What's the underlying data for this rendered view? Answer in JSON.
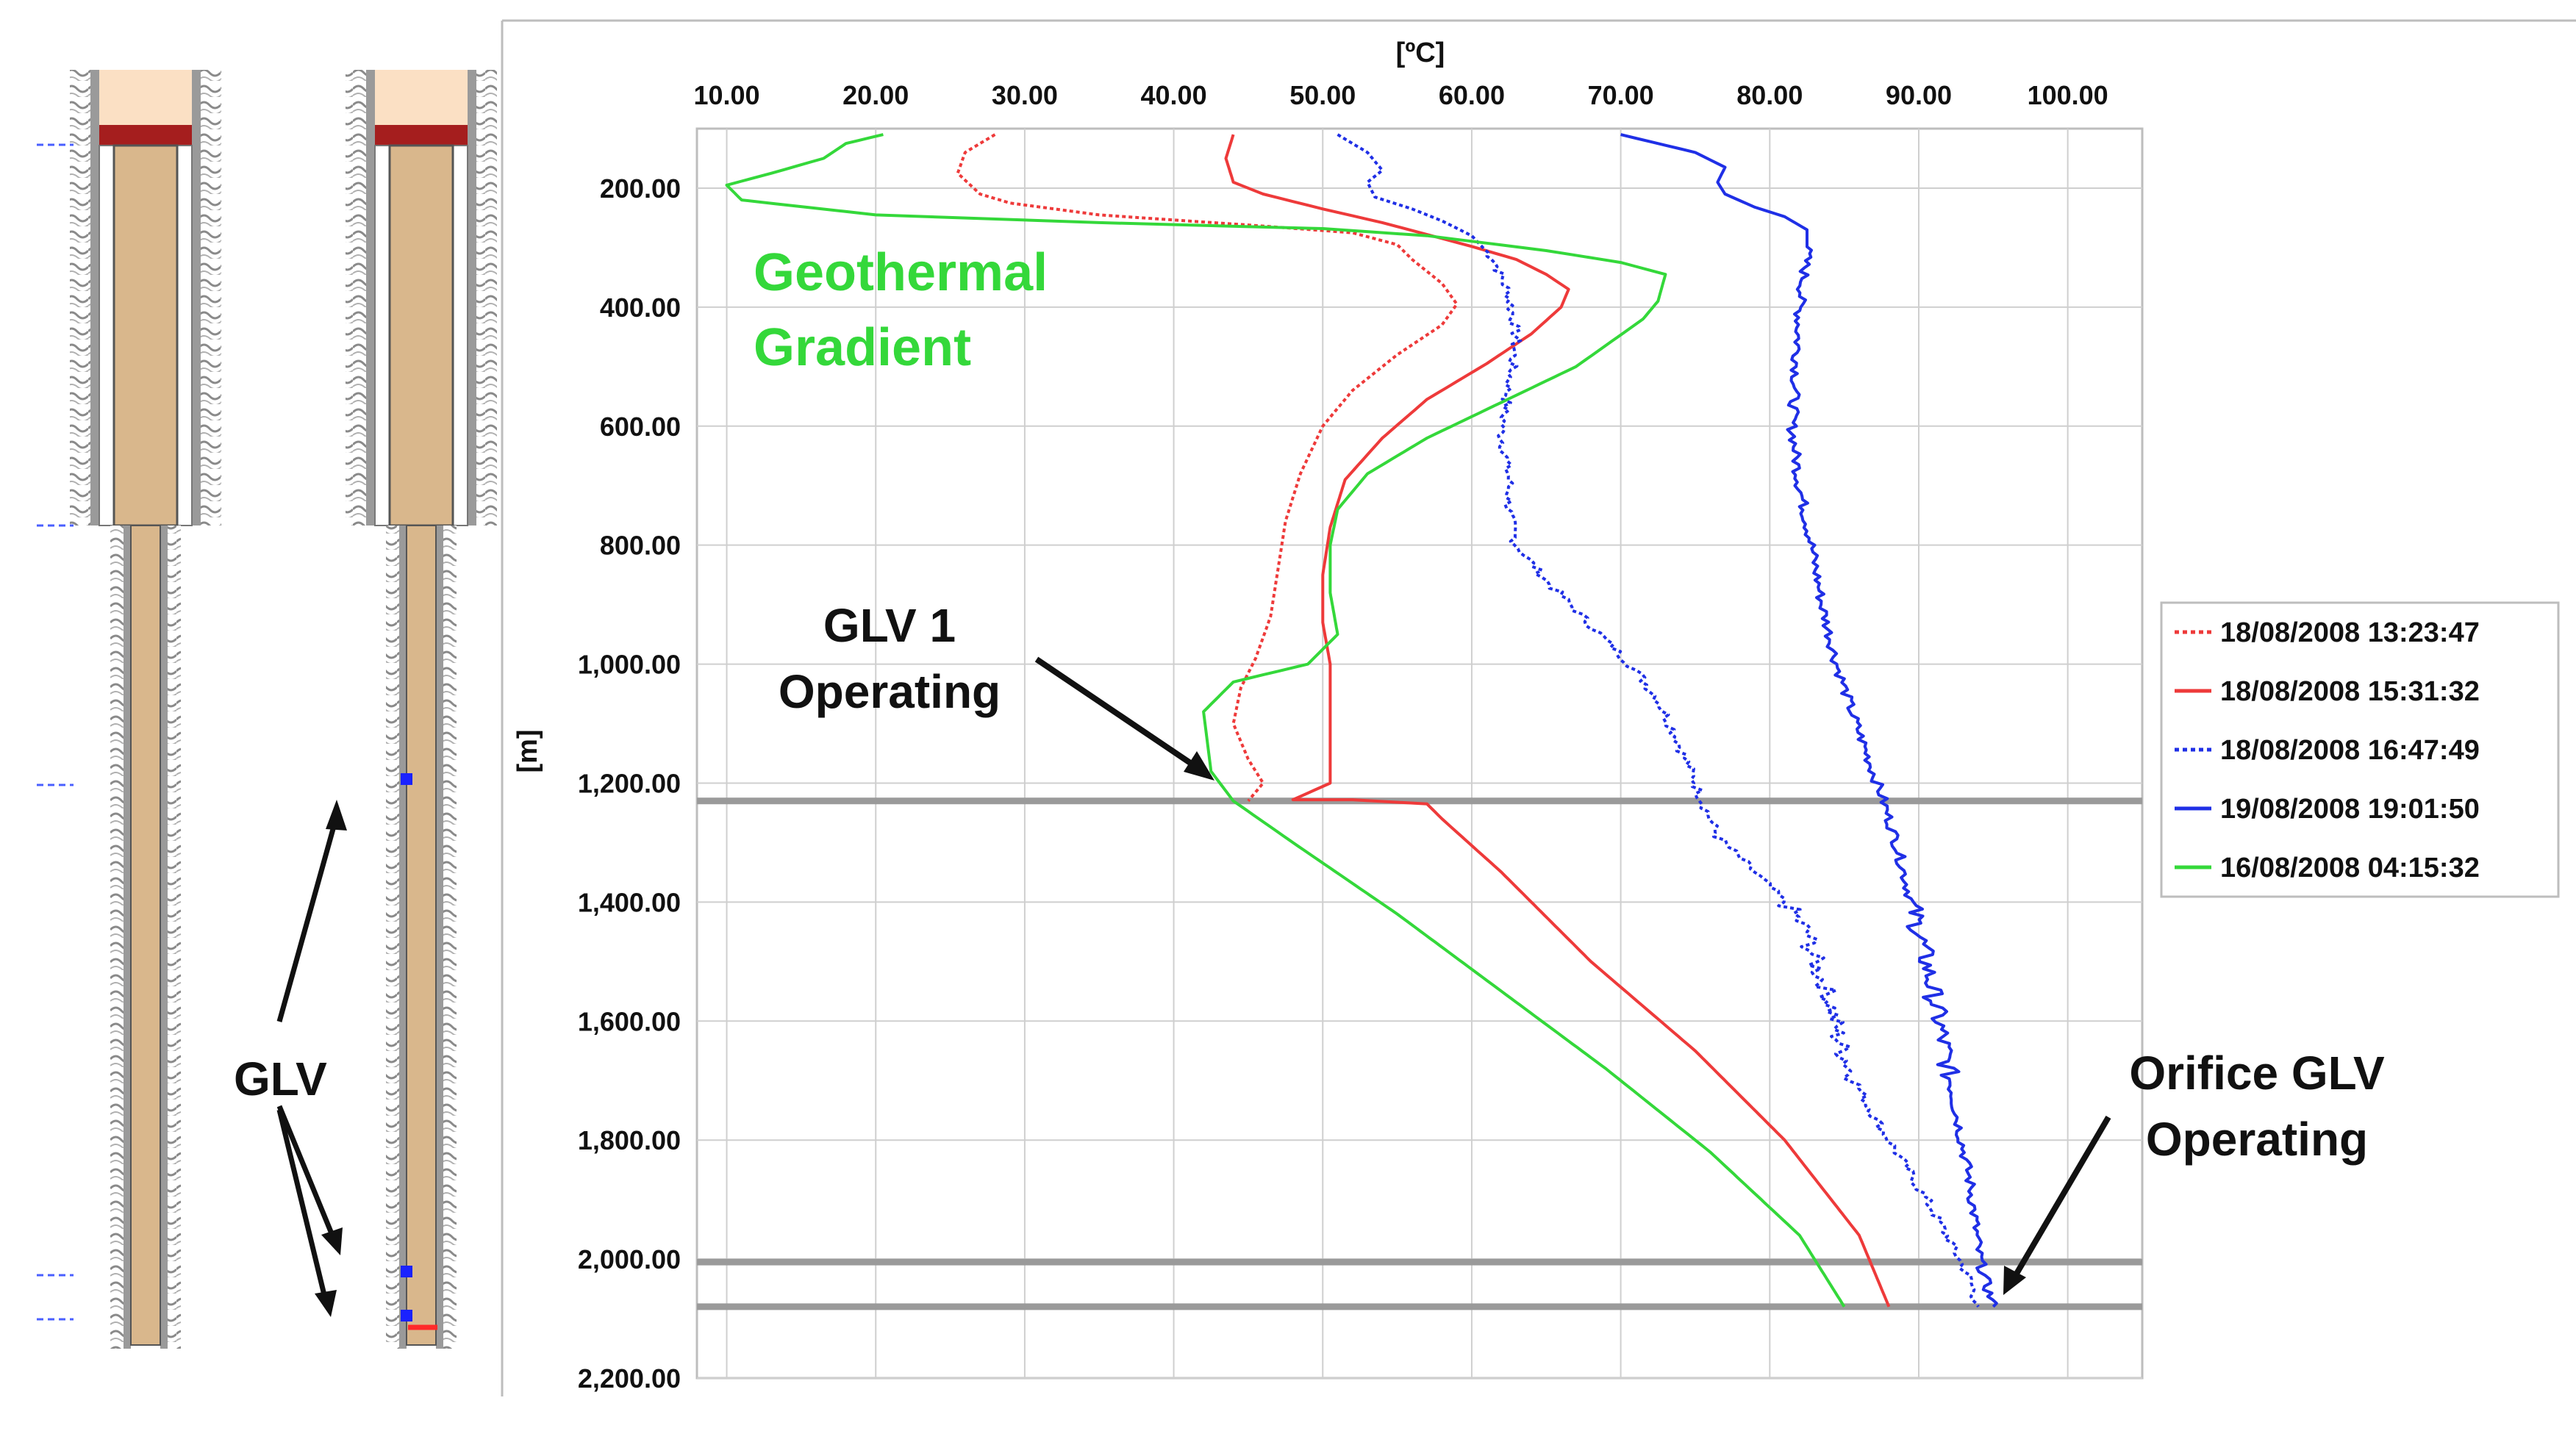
{
  "colors": {
    "red": "#ee3a3a",
    "blue": "#1f2fe6",
    "green": "#34d83a",
    "grid": "#cfcfcf",
    "marker_line": "#9a9a9a",
    "tubing": "#d9b78c",
    "casing_wall": "#9a9a9a",
    "packer": "#a51e1e",
    "top_fill": "#fbe0c4",
    "valve": "#1a22ff"
  },
  "annotations": {
    "geothermal_line1": "Geothermal",
    "geothermal_line2": "Gradient",
    "glv1_line1": "GLV 1",
    "glv1_line2": "Operating",
    "orifice_line1": "Orifice GLV",
    "orifice_line2": "Operating",
    "glv_label": "GLV"
  },
  "chart_data": {
    "type": "line",
    "xlabel": "[ºC]",
    "ylabel": "[m]",
    "xlim": [
      8,
      105
    ],
    "ylim": [
      2200,
      100
    ],
    "x_ticks": [
      "10.00",
      "20.00",
      "30.00",
      "40.00",
      "50.00",
      "60.00",
      "70.00",
      "80.00",
      "90.00",
      "100.00"
    ],
    "x_tick_values": [
      10,
      20,
      30,
      40,
      50,
      60,
      70,
      80,
      90,
      100
    ],
    "y_ticks": [
      "200.00",
      "400.00",
      "600.00",
      "800.00",
      "1,000.00",
      "1,200.00",
      "1,400.00",
      "1,600.00",
      "1,800.00",
      "2,000.00",
      "2,200.00"
    ],
    "y_tick_values": [
      200,
      400,
      600,
      800,
      1000,
      1200,
      1400,
      1600,
      1800,
      2000,
      2200
    ],
    "reference_depths": [
      1230,
      2005,
      2080
    ],
    "legend_position": "right",
    "series": [
      {
        "name": "18/08/2008 13:23:47",
        "color": "#ee3a3a",
        "dash": "dotted",
        "points": [
          [
            28,
            110
          ],
          [
            26,
            140
          ],
          [
            25.5,
            175
          ],
          [
            27,
            210
          ],
          [
            29,
            225
          ],
          [
            35,
            245
          ],
          [
            45,
            262
          ],
          [
            52,
            275
          ],
          [
            55,
            295
          ],
          [
            56,
            320
          ],
          [
            58,
            360
          ],
          [
            59,
            395
          ],
          [
            58,
            430
          ],
          [
            55,
            480
          ],
          [
            52,
            540
          ],
          [
            50,
            600
          ],
          [
            48.5,
            680
          ],
          [
            47.5,
            760
          ],
          [
            47,
            840
          ],
          [
            46.5,
            920
          ],
          [
            45.5,
            990
          ],
          [
            44.5,
            1040
          ],
          [
            44,
            1100
          ],
          [
            45,
            1160
          ],
          [
            46,
            1200
          ],
          [
            45,
            1230
          ]
        ]
      },
      {
        "name": "18/08/2008 15:31:32",
        "color": "#ee3a3a",
        "dash": "solid",
        "points": [
          [
            44,
            110
          ],
          [
            43.5,
            150
          ],
          [
            44,
            190
          ],
          [
            46,
            210
          ],
          [
            50,
            235
          ],
          [
            54,
            258
          ],
          [
            57,
            278
          ],
          [
            60,
            298
          ],
          [
            63,
            320
          ],
          [
            65,
            345
          ],
          [
            66.5,
            370
          ],
          [
            66,
            400
          ],
          [
            64,
            445
          ],
          [
            61,
            495
          ],
          [
            57,
            555
          ],
          [
            54,
            620
          ],
          [
            51.5,
            690
          ],
          [
            50.5,
            770
          ],
          [
            50,
            850
          ],
          [
            50,
            930
          ],
          [
            50.5,
            1000
          ],
          [
            50.5,
            1080
          ],
          [
            50.5,
            1160
          ],
          [
            50.5,
            1200
          ],
          [
            48,
            1228
          ],
          [
            52,
            1228
          ],
          [
            57,
            1235
          ],
          [
            58,
            1260
          ],
          [
            62,
            1350
          ],
          [
            68,
            1500
          ],
          [
            75,
            1650
          ],
          [
            81,
            1800
          ],
          [
            86,
            1960
          ],
          [
            88,
            2080
          ]
        ]
      },
      {
        "name": "18/08/2008 16:47:49",
        "color": "#1f2fe6",
        "dash": "dotted",
        "points": [
          [
            51,
            110
          ],
          [
            53,
            140
          ],
          [
            54,
            170
          ],
          [
            53,
            190
          ],
          [
            53.5,
            215
          ],
          [
            56,
            235
          ],
          [
            58,
            255
          ],
          [
            60,
            280
          ],
          [
            61.5,
            320
          ],
          [
            62.5,
            380
          ],
          [
            63,
            450
          ],
          [
            62.5,
            530
          ],
          [
            62,
            610
          ],
          [
            62.5,
            690
          ],
          [
            62.5,
            750
          ],
          [
            63,
            800
          ],
          [
            65,
            860
          ],
          [
            67,
            910
          ],
          [
            69,
            960
          ],
          [
            71,
            1010
          ],
          [
            72.5,
            1060
          ],
          [
            73.5,
            1110
          ],
          [
            74.5,
            1170
          ],
          [
            75.5,
            1230
          ],
          [
            76.5,
            1290
          ],
          [
            79,
            1350
          ],
          [
            81,
            1400
          ],
          [
            82.5,
            1450
          ],
          [
            83,
            1500
          ],
          [
            84,
            1560
          ],
          [
            84.5,
            1620
          ],
          [
            85.5,
            1690
          ],
          [
            87,
            1760
          ],
          [
            89,
            1840
          ],
          [
            91,
            1920
          ],
          [
            92.5,
            1990
          ],
          [
            93.5,
            2040
          ],
          [
            94,
            2080
          ]
        ]
      },
      {
        "name": "19/08/2008 19:01:50",
        "color": "#1f2fe6",
        "dash": "solid",
        "points": [
          [
            70,
            110
          ],
          [
            75,
            140
          ],
          [
            77,
            165
          ],
          [
            76.5,
            190
          ],
          [
            77,
            210
          ],
          [
            79,
            232
          ],
          [
            81,
            248
          ],
          [
            82.5,
            270
          ],
          [
            82.5,
            310
          ],
          [
            82,
            400
          ],
          [
            81.8,
            500
          ],
          [
            81.5,
            600
          ],
          [
            82,
            700
          ],
          [
            82.8,
            800
          ],
          [
            83.5,
            900
          ],
          [
            84.5,
            1000
          ],
          [
            85.5,
            1080
          ],
          [
            86.5,
            1150
          ],
          [
            87.5,
            1220
          ],
          [
            88.5,
            1300
          ],
          [
            89.5,
            1400
          ],
          [
            90.5,
            1500
          ],
          [
            91.5,
            1620
          ],
          [
            92.5,
            1750
          ],
          [
            93.5,
            1880
          ],
          [
            94,
            1990
          ],
          [
            94.5,
            2040
          ],
          [
            95,
            2080
          ]
        ]
      },
      {
        "name": "16/08/2008 04:15:32",
        "color": "#34d83a",
        "dash": "solid",
        "points": [
          [
            20.5,
            110
          ],
          [
            18,
            125
          ],
          [
            16.5,
            150
          ],
          [
            13,
            175
          ],
          [
            10,
            195
          ],
          [
            11,
            220
          ],
          [
            20,
            245
          ],
          [
            35,
            258
          ],
          [
            50,
            268
          ],
          [
            57,
            280
          ],
          [
            65,
            305
          ],
          [
            70,
            325
          ],
          [
            73,
            345
          ],
          [
            72.5,
            390
          ],
          [
            71.5,
            420
          ],
          [
            67,
            500
          ],
          [
            62,
            560
          ],
          [
            57,
            620
          ],
          [
            53,
            680
          ],
          [
            51,
            740
          ],
          [
            50.5,
            800
          ],
          [
            50.5,
            880
          ],
          [
            51,
            950
          ],
          [
            49,
            1000
          ],
          [
            44,
            1030
          ],
          [
            42,
            1080
          ],
          [
            42.5,
            1180
          ],
          [
            44,
            1230
          ],
          [
            48,
            1300
          ],
          [
            55,
            1420
          ],
          [
            62,
            1550
          ],
          [
            69,
            1680
          ],
          [
            76,
            1820
          ],
          [
            82,
            1960
          ],
          [
            85,
            2080
          ]
        ]
      }
    ]
  }
}
